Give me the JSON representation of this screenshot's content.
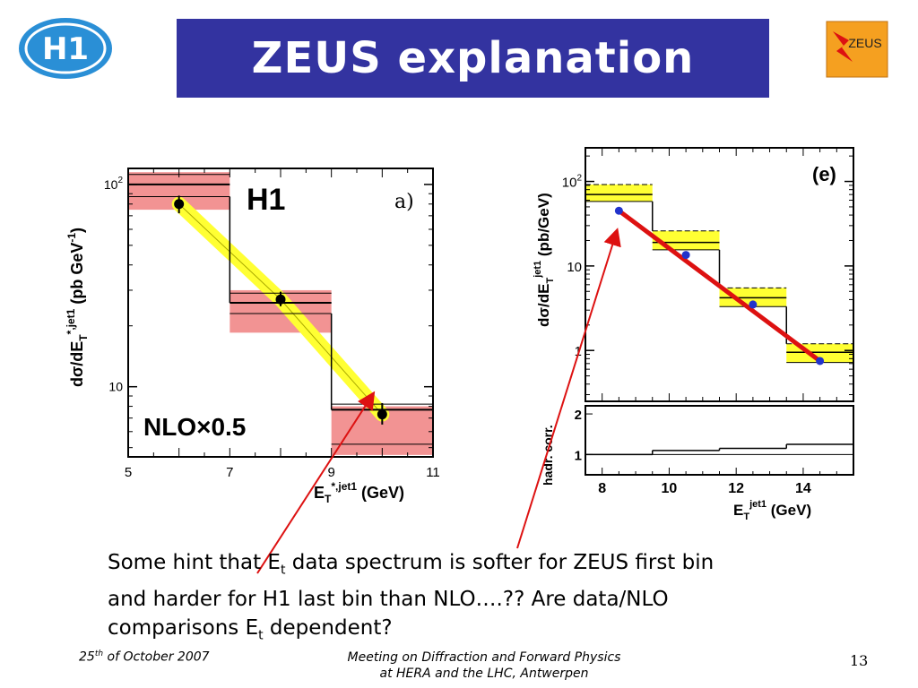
{
  "slide": {
    "title": "ZEUS explanation",
    "logo_left_text": "H1",
    "logo_right_text": "ZEUS",
    "text_line1_a": "Some hint that E",
    "text_line1_sub": "t",
    "text_line1_b": " data spectrum is softer for ZEUS first bin",
    "text_line2": "and harder for H1 last bin than NLO….?? Are data/NLO",
    "text_line3_a": "comparisons E",
    "text_line3_sub": "t",
    "text_line3_b": " dependent?",
    "footer_date_a": "25",
    "footer_date_sup": "th",
    "footer_date_b": " of October 2007",
    "footer_meeting_1": "Meeting on Diffraction and Forward Physics",
    "footer_meeting_2": "at HERA and  the LHC, Antwerpen",
    "page_number": "13",
    "colors": {
      "title_bg": "#3333a0",
      "nlo_band": "#ffff33",
      "syst_band": "#f08080",
      "zeus_data": "#2233cc",
      "arrow": "#dd1111"
    }
  },
  "chart_data": [
    {
      "type": "line",
      "label": "H1",
      "panel": "a)",
      "annotation": "NLO×0.5",
      "xlabel_main": "E",
      "xlabel_sub": "T",
      "xlabel_sup": "*,jet1",
      "xlabel_unit": " (GeV)",
      "ylabel": "dσ/dE_T^*,jet1 (pb GeV^-1)",
      "ylabel_a": "dσ/dE",
      "ylabel_sub": "T",
      "ylabel_sup": "*,jet1",
      "ylabel_b": " (pb GeV",
      "ylabel_sup2": "-1",
      "ylabel_c": ")",
      "xlim": [
        5,
        11
      ],
      "ylim": [
        4.5,
        120
      ],
      "log_y": true,
      "x_ticks": [
        5,
        7,
        9,
        11
      ],
      "y_tick_labels": [
        {
          "v": 100,
          "text": "10 2"
        },
        {
          "v": 10,
          "text": "10"
        }
      ],
      "data": [
        {
          "x": 6,
          "y": 80,
          "err_lo": 72,
          "err_hi": 88
        },
        {
          "x": 8,
          "y": 27,
          "err_lo": 25,
          "err_hi": 29.5
        },
        {
          "x": 10,
          "y": 7.3,
          "err_lo": 6.5,
          "err_hi": 8.3
        }
      ],
      "nlo_bins": [
        {
          "x0": 5,
          "x1": 7,
          "y": 100,
          "lo": 87,
          "hi": 112
        },
        {
          "x0": 7,
          "x1": 9,
          "y": 26,
          "lo": 23,
          "hi": 29
        },
        {
          "x0": 9,
          "x1": 11,
          "y": 7.7,
          "lo": 5.2,
          "hi": 8.2
        }
      ],
      "syst_bands": [
        {
          "x0": 5,
          "x1": 7,
          "lo": 75,
          "hi": 115
        },
        {
          "x0": 7,
          "x1": 9,
          "lo": 18.5,
          "hi": 30
        },
        {
          "x0": 9,
          "x1": 11,
          "lo": 4.6,
          "hi": 8.0
        }
      ],
      "nlo_band_line": [
        [
          6,
          80
        ],
        [
          8,
          27
        ],
        [
          10,
          7.3
        ]
      ]
    },
    {
      "type": "line",
      "panel": "(e)",
      "xlabel_main": "E",
      "xlabel_sub": "T",
      "xlabel_sup": "jet1",
      "xlabel_unit": " (GeV)",
      "ylabel": "dσ/dE_T^jet1 (pb/GeV)",
      "ylabel_a": "dσ/dE",
      "ylabel_sub": "T",
      "ylabel_sup": "jet1",
      "ylabel_b": " (pb/GeV)",
      "lower_ylabel": "hadr. corr.",
      "xlim": [
        7.5,
        15.5
      ],
      "ylim": [
        0.25,
        250
      ],
      "log_y": true,
      "x_ticks": [
        8,
        10,
        12,
        14
      ],
      "y_tick_labels": [
        {
          "v": 100,
          "text": "10 2"
        },
        {
          "v": 10,
          "text": "10"
        },
        {
          "v": 1,
          "text": "1"
        }
      ],
      "data": [
        {
          "x": 8.5,
          "y": 45
        },
        {
          "x": 10.5,
          "y": 13.5
        },
        {
          "x": 12.5,
          "y": 3.5
        },
        {
          "x": 14.5,
          "y": 0.75
        }
      ],
      "nlo_bins": [
        {
          "x0": 7.5,
          "x1": 9.5,
          "y": 70,
          "lo": 58,
          "hi": 92
        },
        {
          "x0": 9.5,
          "x1": 11.5,
          "y": 19,
          "lo": 15.5,
          "hi": 26
        },
        {
          "x0": 11.5,
          "x1": 13.5,
          "y": 4.2,
          "lo": 3.3,
          "hi": 5.5
        },
        {
          "x0": 13.5,
          "x1": 15.5,
          "y": 0.95,
          "lo": 0.72,
          "hi": 1.2
        }
      ],
      "fit_line": [
        [
          8.5,
          45
        ],
        [
          14.5,
          0.75
        ]
      ],
      "hadr_corr": {
        "ylim": [
          0.5,
          2.2
        ],
        "y_ticks": [
          1,
          2
        ],
        "bins": [
          {
            "x0": 7.5,
            "x1": 9.5,
            "y": 1.0
          },
          {
            "x0": 9.5,
            "x1": 11.5,
            "y": 1.1
          },
          {
            "x0": 11.5,
            "x1": 13.5,
            "y": 1.15
          },
          {
            "x0": 13.5,
            "x1": 15.5,
            "y": 1.25
          }
        ]
      }
    }
  ]
}
